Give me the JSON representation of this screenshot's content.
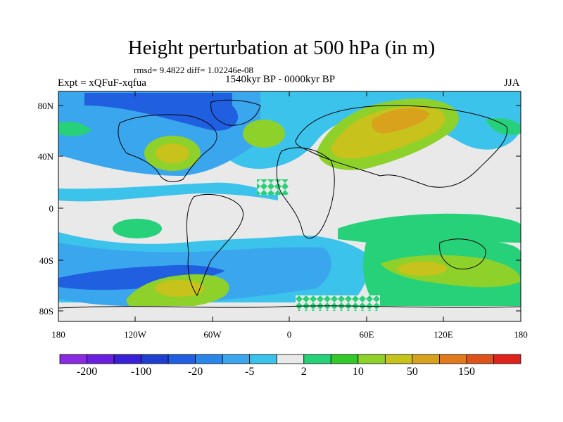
{
  "title": "Height perturbation at 500 hPa (in m)",
  "stats": "rmsd= 9.4822 diff= 1.02246e-08",
  "experiment": "Expt = xQFuF-xqfua",
  "period": "1540kyr BP - 0000kyr BP",
  "season": "JJA",
  "lat_ticks": [
    "80N",
    "40N",
    "0",
    "40S",
    "80S"
  ],
  "lon_ticks": [
    "180",
    "120W",
    "60W",
    "0",
    "60E",
    "120E",
    "180"
  ],
  "colorbar": {
    "labels": [
      "-200",
      "-100",
      "-20",
      "-5",
      "2",
      "10",
      "50",
      "150"
    ],
    "colors": [
      "#8a2be2",
      "#6a1fe0",
      "#3a1fd8",
      "#1f3fd0",
      "#1f5fe0",
      "#2a86e8",
      "#3aa6ee",
      "#3cc3ec",
      "#e9e9e9",
      "#27d17a",
      "#33c92a",
      "#8ed12a",
      "#c7c21c",
      "#d8a21c",
      "#e07a1c",
      "#e0521c",
      "#e0221c"
    ]
  },
  "palette": {
    "neg_strong": "#1f5fe0",
    "neg_mid": "#2a86e8",
    "neg_light": "#3cc3ec",
    "neutral": "#e9e9e9",
    "pos_light": "#27d17a",
    "pos_mid": "#8ed12a",
    "pos_strong": "#c7a21c"
  }
}
